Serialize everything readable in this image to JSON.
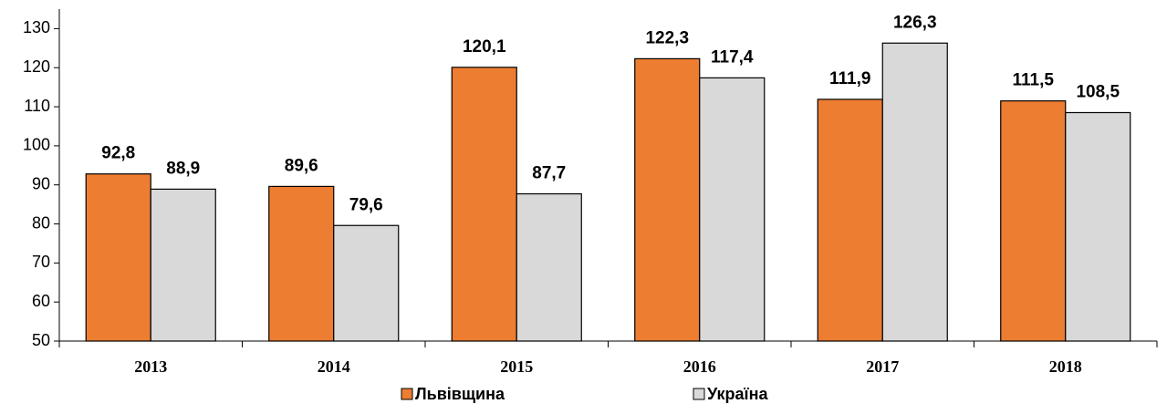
{
  "chart_data": {
    "type": "bar",
    "categories": [
      "2013",
      "2014",
      "2015",
      "2016",
      "2017",
      "2018"
    ],
    "series": [
      {
        "name": "Львівщина",
        "color": "#ed7d31",
        "values": [
          92.8,
          89.6,
          120.1,
          122.3,
          111.9,
          111.5
        ],
        "value_labels": [
          "92,8",
          "89,6",
          "120,1",
          "122,3",
          "111,9",
          "111,5"
        ]
      },
      {
        "name": "Україна",
        "color": "#d9d9d9",
        "values": [
          88.9,
          79.6,
          87.7,
          117.4,
          126.3,
          108.5
        ],
        "value_labels": [
          "88,9",
          "79,6",
          "87,7",
          "117,4",
          "126,3",
          "108,5"
        ]
      }
    ],
    "ylim": [
      50,
      135
    ],
    "yticks": [
      50,
      60,
      70,
      80,
      90,
      100,
      110,
      120,
      130
    ],
    "legend": "bottom"
  }
}
